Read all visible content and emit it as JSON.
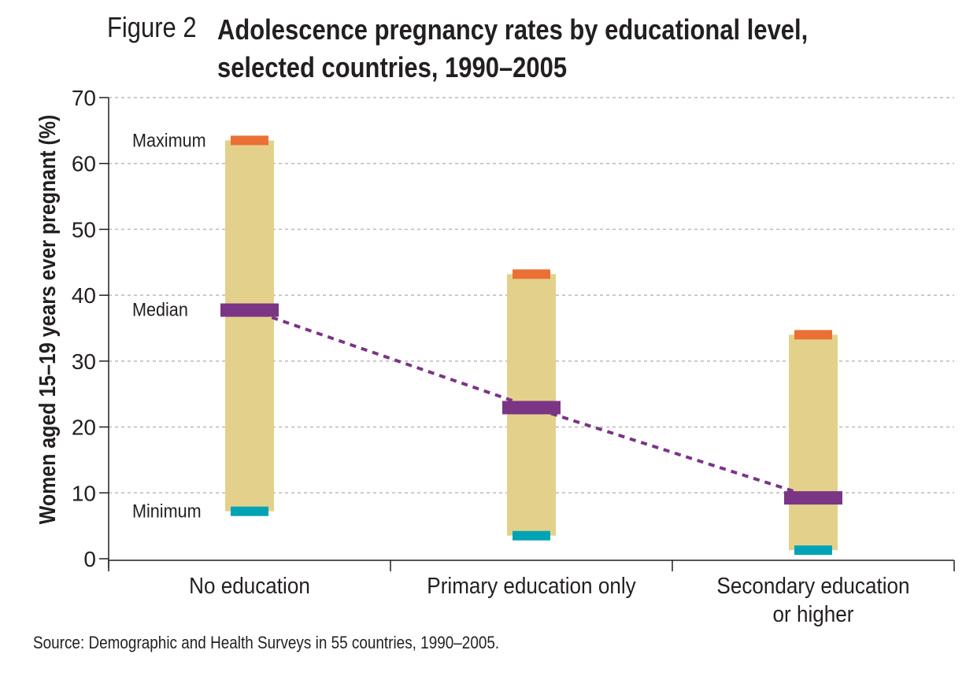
{
  "figure_label": "Figure 2",
  "title_line1": "Adolescence pregnancy rates by educational level,",
  "title_line2": "selected countries, 1990–2005",
  "source": "Source: Demographic and Health Surveys in 55 countries, 1990–2005.",
  "colors": {
    "range_bar": "#e3d18b",
    "maximum": "#ea7035",
    "median": "#7b3585",
    "minimum": "#00a3b4",
    "gridline": "#bbbbbb"
  },
  "chart_data": {
    "type": "range",
    "ylabel": "Women aged 15–19 years ever pregnant (%)",
    "xlabel": "",
    "ylim": [
      0,
      70
    ],
    "yticks": [
      0,
      10,
      20,
      30,
      40,
      50,
      60,
      70
    ],
    "grid": true,
    "categories": [
      [
        "No education"
      ],
      [
        "Primary education only"
      ],
      [
        "Secondary education",
        "or higher"
      ]
    ],
    "series": [
      {
        "name": "Maximum",
        "values": [
          63.5,
          43.2,
          34.0
        ]
      },
      {
        "name": "Median",
        "values": [
          37.8,
          23.0,
          9.3
        ]
      },
      {
        "name": "Minimum",
        "values": [
          7.2,
          3.5,
          1.3
        ]
      }
    ],
    "annotations": [
      "Maximum",
      "Median",
      "Minimum"
    ]
  }
}
